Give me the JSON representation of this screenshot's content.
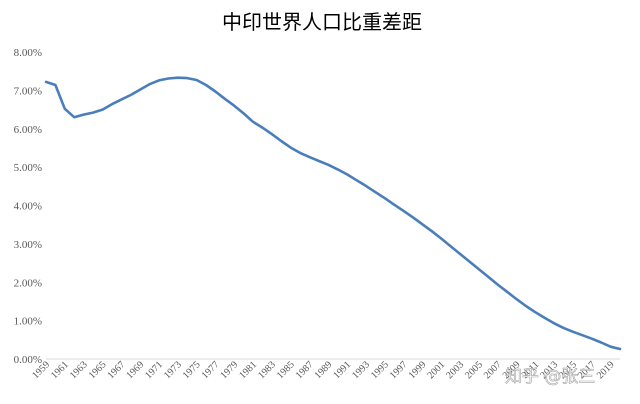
{
  "chart_data": {
    "type": "line",
    "title": "中印世界人口比重差距",
    "xlabel": "",
    "ylabel": "",
    "ylim": [
      0,
      8
    ],
    "y_ticks": [
      "0.00%",
      "1.00%",
      "2.00%",
      "3.00%",
      "4.00%",
      "5.00%",
      "6.00%",
      "7.00%",
      "8.00%"
    ],
    "x_range": [
      1959,
      2020
    ],
    "x_tick_labels": [
      "1959",
      "1961",
      "1963",
      "1965",
      "1967",
      "1969",
      "1971",
      "1973",
      "1975",
      "1977",
      "1979",
      "1981",
      "1983",
      "1985",
      "1987",
      "1989",
      "1991",
      "1993",
      "1995",
      "1997",
      "1999",
      "2001",
      "2003",
      "2005",
      "2007",
      "2009",
      "2011",
      "2013",
      "2015",
      "2017",
      "2019"
    ],
    "grid": false,
    "legend": "none",
    "series": [
      {
        "color": "#4a7ebb",
        "x": [
          1959,
          1960,
          1961,
          1962,
          1963,
          1964,
          1965,
          1966,
          1967,
          1968,
          1969,
          1970,
          1971,
          1972,
          1973,
          1974,
          1975,
          1976,
          1977,
          1978,
          1979,
          1980,
          1981,
          1982,
          1983,
          1984,
          1985,
          1986,
          1987,
          1988,
          1989,
          1990,
          1991,
          1992,
          1993,
          1994,
          1995,
          1996,
          1997,
          1998,
          1999,
          2000,
          2001,
          2002,
          2003,
          2004,
          2005,
          2006,
          2007,
          2008,
          2009,
          2010,
          2011,
          2012,
          2013,
          2014,
          2015,
          2016,
          2017,
          2018,
          2019,
          2020
        ],
        "values": [
          7.22,
          7.14,
          6.52,
          6.3,
          6.37,
          6.42,
          6.5,
          6.64,
          6.76,
          6.88,
          7.02,
          7.16,
          7.26,
          7.31,
          7.33,
          7.32,
          7.27,
          7.14,
          6.97,
          6.78,
          6.6,
          6.4,
          6.18,
          6.03,
          5.86,
          5.68,
          5.51,
          5.37,
          5.26,
          5.16,
          5.06,
          4.94,
          4.81,
          4.66,
          4.51,
          4.35,
          4.19,
          4.02,
          3.86,
          3.69,
          3.51,
          3.33,
          3.14,
          2.94,
          2.74,
          2.54,
          2.34,
          2.14,
          1.94,
          1.75,
          1.56,
          1.38,
          1.22,
          1.07,
          0.93,
          0.81,
          0.71,
          0.62,
          0.53,
          0.43,
          0.32,
          0.26
        ]
      }
    ]
  },
  "watermark": "知乎 @张三"
}
